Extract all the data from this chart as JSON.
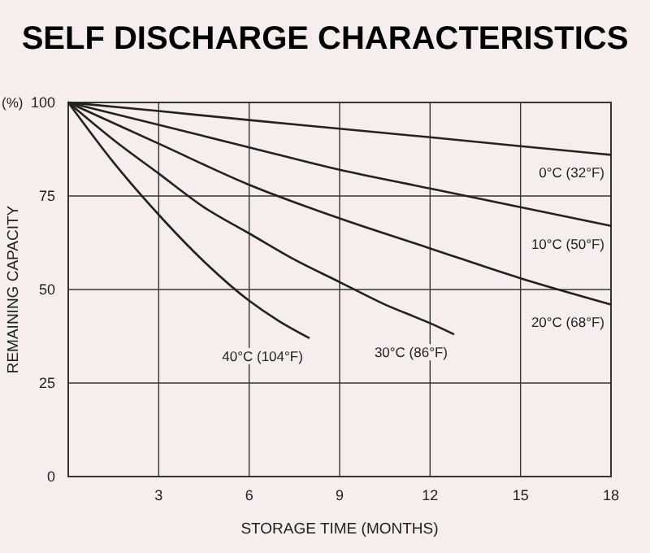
{
  "chart_data": {
    "type": "line",
    "title": "SELF DISCHARGE CHARACTERISTICS",
    "xlabel": "STORAGE TIME (MONTHS)",
    "ylabel": "REMAINING CAPACITY",
    "annotations": [
      "(%)"
    ],
    "xlim": [
      0,
      18
    ],
    "xticks": [
      3,
      6,
      9,
      12,
      15,
      18
    ],
    "ylim": [
      0,
      100
    ],
    "yticks": [
      0,
      25,
      50,
      75,
      100
    ],
    "grid": true,
    "marker": "none",
    "line_style": "solid",
    "series": [
      {
        "name": "0°C (32°F)",
        "color": "#222222",
        "x": [
          0,
          3,
          6,
          9,
          12,
          15,
          18
        ],
        "values": [
          100,
          97.7,
          95.3,
          93,
          90.7,
          88.3,
          86
        ]
      },
      {
        "name": "10°C (50°F)",
        "color": "#222222",
        "x": [
          0,
          3,
          6,
          9,
          12,
          15,
          18
        ],
        "values": [
          100,
          94,
          88,
          82,
          77,
          72,
          67
        ]
      },
      {
        "name": "20°C (68°F)",
        "color": "#222222",
        "x": [
          0,
          3,
          6,
          9,
          12,
          15,
          18
        ],
        "values": [
          100,
          89,
          78,
          69,
          61,
          53,
          46
        ]
      },
      {
        "name": "30°C (86°F)",
        "color": "#222222",
        "x": [
          0,
          1.5,
          3,
          4.5,
          6,
          7.5,
          9,
          10.5,
          12,
          12.8
        ],
        "values": [
          100,
          90,
          81,
          72,
          65,
          58,
          52,
          46,
          41,
          38
        ]
      },
      {
        "name": "40°C (104°F)",
        "color": "#222222",
        "x": [
          0,
          1.5,
          3,
          4.5,
          6,
          7,
          8
        ],
        "values": [
          100,
          84,
          70,
          57.5,
          47,
          41.5,
          37
        ]
      }
    ]
  }
}
